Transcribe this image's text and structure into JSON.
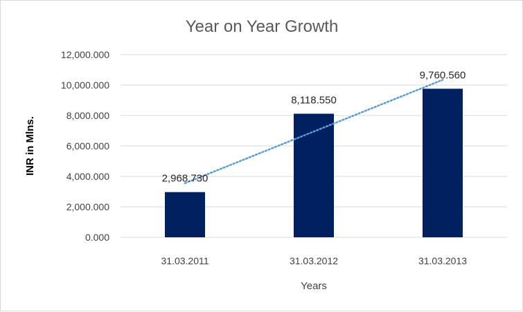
{
  "chart_data": {
    "type": "bar",
    "title": "Year on Year Growth",
    "xlabel": "Years",
    "ylabel": "INR in Mlns.",
    "categories": [
      "31.03.2011",
      "31.03.2012",
      "31.03.2013"
    ],
    "values": [
      2968.73,
      8118.55,
      9760.56
    ],
    "value_labels": [
      "2,968.730",
      "8,118.550",
      "9,760.560"
    ],
    "y_ticks": [
      0,
      2000,
      4000,
      6000,
      8000,
      10000,
      12000
    ],
    "y_tick_labels": [
      "0.000",
      "2,000.000",
      "4,000.000",
      "6,000.000",
      "8,000.000",
      "10,000.000",
      "12,000.000"
    ],
    "ylim": [
      0,
      12000
    ],
    "grid": true,
    "legend": "none",
    "trendline": {
      "type": "linear",
      "style": "dotted",
      "color": "#5b9bd5"
    },
    "bar_color": "#002060"
  }
}
